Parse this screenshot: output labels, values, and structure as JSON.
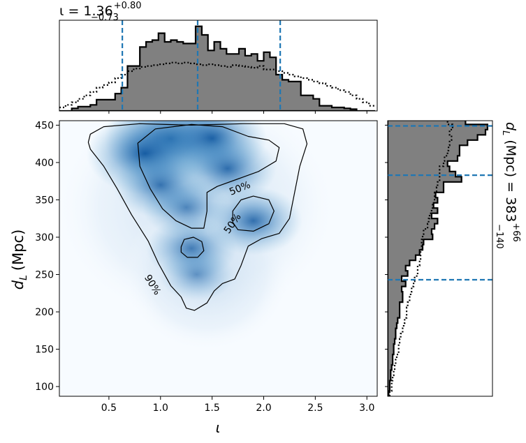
{
  "chart_data": [
    {
      "panel": "joint",
      "type": "heatmap",
      "xlabel": "ι",
      "ylabel_main": "d",
      "ylabel_sub": "L",
      "ylabel_unit": "(Mpc)",
      "xlim": [
        0.02,
        3.1
      ],
      "ylim": [
        87,
        456
      ],
      "xticks": [
        0.5,
        1.0,
        1.5,
        2.0,
        2.5,
        3.0
      ],
      "xtick_labels": [
        "0.5",
        "1.0",
        "1.5",
        "2.0",
        "2.5",
        "3.0"
      ],
      "yticks": [
        100,
        150,
        200,
        250,
        300,
        350,
        400,
        450
      ],
      "ytick_labels": [
        "100",
        "150",
        "200",
        "250",
        "300",
        "350",
        "400",
        "450"
      ],
      "colormap": "Blues",
      "density_peaks": [
        {
          "x": 1.1,
          "y": 432,
          "w": 1.0
        },
        {
          "x": 0.85,
          "y": 412,
          "w": 0.8
        },
        {
          "x": 1.5,
          "y": 432,
          "w": 0.7
        },
        {
          "x": 1.65,
          "y": 392,
          "w": 0.55
        },
        {
          "x": 1.9,
          "y": 322,
          "w": 0.55
        },
        {
          "x": 1.3,
          "y": 285,
          "w": 0.45
        },
        {
          "x": 1.25,
          "y": 340,
          "w": 0.4
        },
        {
          "x": 1.35,
          "y": 250,
          "w": 0.25
        },
        {
          "x": 1.0,
          "y": 370,
          "w": 0.5
        }
      ],
      "contours": [
        {
          "level_label": "90%",
          "points": [
            [
              0.3,
              427
            ],
            [
              0.32,
              438
            ],
            [
              0.45,
              448
            ],
            [
              0.8,
              452
            ],
            [
              1.3,
              450
            ],
            [
              1.8,
              452
            ],
            [
              2.2,
              452
            ],
            [
              2.38,
              445
            ],
            [
              2.42,
              425
            ],
            [
              2.35,
              395
            ],
            [
              2.3,
              360
            ],
            [
              2.25,
              325
            ],
            [
              2.15,
              305
            ],
            [
              1.98,
              298
            ],
            [
              1.85,
              288
            ],
            [
              1.78,
              262
            ],
            [
              1.72,
              244
            ],
            [
              1.6,
              238
            ],
            [
              1.52,
              228
            ],
            [
              1.45,
              212
            ],
            [
              1.33,
              202
            ],
            [
              1.25,
              205
            ],
            [
              1.2,
              220
            ],
            [
              1.1,
              235
            ],
            [
              0.98,
              265
            ],
            [
              0.88,
              295
            ],
            [
              0.72,
              330
            ],
            [
              0.58,
              365
            ],
            [
              0.45,
              395
            ],
            [
              0.32,
              418
            ],
            [
              0.3,
              427
            ]
          ]
        },
        {
          "level_label": "50%",
          "points": [
            [
              0.78,
              426
            ],
            [
              0.95,
              445
            ],
            [
              1.3,
              451
            ],
            [
              1.6,
              448
            ],
            [
              1.85,
              435
            ],
            [
              2.05,
              430
            ],
            [
              2.15,
              420
            ],
            [
              2.12,
              402
            ],
            [
              1.95,
              388
            ],
            [
              1.75,
              378
            ],
            [
              1.55,
              368
            ],
            [
              1.45,
              360
            ],
            [
              1.45,
              335
            ],
            [
              1.42,
              312
            ],
            [
              1.3,
              312
            ],
            [
              1.15,
              322
            ],
            [
              1.02,
              338
            ],
            [
              0.9,
              365
            ],
            [
              0.8,
              395
            ],
            [
              0.78,
              426
            ]
          ]
        },
        {
          "level_label": "50%",
          "points": [
            [
              1.7,
              335
            ],
            [
              1.78,
              350
            ],
            [
              1.9,
              355
            ],
            [
              2.05,
              350
            ],
            [
              2.1,
              335
            ],
            [
              2.05,
              318
            ],
            [
              1.9,
              308
            ],
            [
              1.75,
              310
            ],
            [
              1.7,
              320
            ],
            [
              1.7,
              335
            ]
          ]
        },
        {
          "level_label": "",
          "points": [
            [
              1.2,
              287
            ],
            [
              1.23,
              297
            ],
            [
              1.32,
              300
            ],
            [
              1.4,
              294
            ],
            [
              1.42,
              282
            ],
            [
              1.36,
              273
            ],
            [
              1.26,
              273
            ],
            [
              1.2,
              280
            ],
            [
              1.2,
              287
            ]
          ]
        }
      ],
      "contour_labels": [
        {
          "text": "50%",
          "x": 1.77,
          "y": 365,
          "rotation": -22
        },
        {
          "text": "50%",
          "x": 1.7,
          "y": 318,
          "rotation": -55
        },
        {
          "text": "90%",
          "x": 0.92,
          "y": 236,
          "rotation": 58
        }
      ]
    },
    {
      "panel": "top-marginal",
      "type": "histogram",
      "title_main": "ι = 1.36",
      "title_sup": "+0.80",
      "title_sub": "−0.73",
      "xlim": [
        0.02,
        3.1
      ],
      "ylim": [
        0,
        1.05
      ],
      "bin_edges": [
        0.02,
        0.08,
        0.14,
        0.2,
        0.26,
        0.32,
        0.38,
        0.44,
        0.5,
        0.56,
        0.62,
        0.68,
        0.74,
        0.8,
        0.86,
        0.92,
        0.98,
        1.04,
        1.1,
        1.16,
        1.22,
        1.28,
        1.34,
        1.4,
        1.46,
        1.52,
        1.58,
        1.64,
        1.7,
        1.76,
        1.82,
        1.88,
        1.94,
        2.0,
        2.06,
        2.12,
        2.18,
        2.24,
        2.3,
        2.36,
        2.42,
        2.48,
        2.54,
        2.6,
        2.66,
        2.72,
        2.78,
        2.84,
        2.9,
        2.96,
        3.02,
        3.08
      ],
      "hist_values": [
        0.0,
        0.0,
        0.03,
        0.05,
        0.05,
        0.07,
        0.13,
        0.13,
        0.13,
        0.2,
        0.27,
        0.52,
        0.52,
        0.74,
        0.8,
        0.82,
        0.9,
        0.8,
        0.82,
        0.8,
        0.78,
        0.78,
        0.98,
        0.88,
        0.7,
        0.8,
        0.72,
        0.66,
        0.66,
        0.72,
        0.64,
        0.66,
        0.58,
        0.68,
        0.62,
        0.42,
        0.36,
        0.34,
        0.34,
        0.18,
        0.18,
        0.14,
        0.06,
        0.06,
        0.04,
        0.04,
        0.03,
        0.02,
        0.0,
        0.0,
        0.0
      ],
      "prior_values": [
        0.04,
        0.07,
        0.1,
        0.14,
        0.18,
        0.22,
        0.27,
        0.3,
        0.33,
        0.38,
        0.42,
        0.46,
        0.49,
        0.51,
        0.52,
        0.53,
        0.54,
        0.55,
        0.56,
        0.55,
        0.56,
        0.55,
        0.54,
        0.53,
        0.54,
        0.53,
        0.52,
        0.51,
        0.53,
        0.52,
        0.51,
        0.5,
        0.52,
        0.48,
        0.48,
        0.46,
        0.44,
        0.42,
        0.4,
        0.38,
        0.36,
        0.34,
        0.32,
        0.29,
        0.27,
        0.24,
        0.22,
        0.18,
        0.14,
        0.1,
        0.06
      ],
      "quantile_lines": [
        0.63,
        1.36,
        2.16
      ]
    },
    {
      "panel": "right-marginal",
      "type": "histogram",
      "label_main": "d",
      "label_sub_index": "L",
      "label_rest": " (Mpc) = 383",
      "label_sup": "+66",
      "label_sub": "−140",
      "ylim": [
        87,
        456
      ],
      "xlim": [
        0,
        1.05
      ],
      "bin_edges": [
        87,
        94,
        101,
        108,
        115,
        122,
        129,
        136,
        143,
        150,
        157,
        164,
        171,
        178,
        185,
        192,
        199,
        206,
        213,
        220,
        227,
        234,
        241,
        248,
        255,
        262,
        269,
        276,
        283,
        290,
        297,
        304,
        311,
        318,
        325,
        332,
        339,
        346,
        353,
        360,
        367,
        374,
        381,
        388,
        395,
        402,
        409,
        416,
        423,
        430,
        437,
        444,
        451,
        458
      ],
      "hist_values": [
        0.01,
        0.02,
        0.02,
        0.03,
        0.03,
        0.04,
        0.05,
        0.05,
        0.06,
        0.06,
        0.07,
        0.08,
        0.08,
        0.09,
        0.1,
        0.12,
        0.12,
        0.12,
        0.15,
        0.15,
        0.14,
        0.18,
        0.14,
        0.2,
        0.18,
        0.22,
        0.28,
        0.32,
        0.35,
        0.36,
        0.45,
        0.44,
        0.47,
        0.5,
        0.44,
        0.5,
        0.46,
        0.5,
        0.48,
        0.56,
        0.56,
        0.74,
        0.68,
        0.62,
        0.6,
        0.7,
        0.72,
        0.72,
        0.8,
        0.9,
        0.98,
        1.0,
        0.78
      ],
      "prior_values": [
        0.02,
        0.04,
        0.04,
        0.05,
        0.06,
        0.07,
        0.08,
        0.09,
        0.11,
        0.11,
        0.12,
        0.13,
        0.15,
        0.16,
        0.17,
        0.19,
        0.19,
        0.2,
        0.22,
        0.23,
        0.24,
        0.26,
        0.27,
        0.3,
        0.3,
        0.32,
        0.33,
        0.33,
        0.34,
        0.34,
        0.35,
        0.36,
        0.4,
        0.41,
        0.42,
        0.44,
        0.45,
        0.47,
        0.47,
        0.49,
        0.5,
        0.52,
        0.52,
        0.52,
        0.56,
        0.57,
        0.6,
        0.61,
        0.62,
        0.64,
        0.62,
        0.65,
        0.6
      ],
      "quantile_lines": [
        243,
        383,
        449
      ]
    }
  ]
}
